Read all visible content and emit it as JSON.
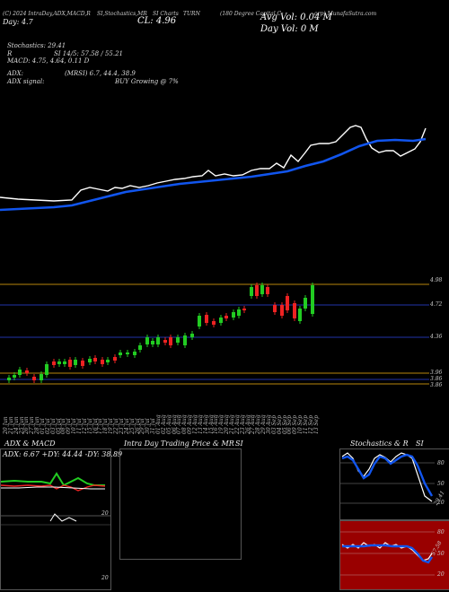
{
  "header": {
    "left_line1": "(C) 2024 IntraDay,ADX,MACD,R",
    "left_line2": "SI,Stochastics,MR",
    "left_line3": "SI Charts",
    "cl_label": "CL: 4.96",
    "ticker": "TURN",
    "title": "(180 Degree Capital C",
    "source": "orp) MunafaSutra.com",
    "day_label": "Day: 4.7",
    "avg_vol": "Avg Vol: 0.04  M",
    "day_vol": "Day Vol: 0  M"
  },
  "indicators": {
    "stochastics": "Stochastics: 29.41",
    "rsi": "SI 14/5: 57.58 / 55.21",
    "rsi_prefix": "R",
    "macd": "MACD: 4.75, 4.64, 0.11 D",
    "adx": "ADX:",
    "mrsi": "(MRSI) 6.7, 44.4, 38.9",
    "adx_signal": "ADX  signal:",
    "signal": "BUY Growing @ 7%"
  },
  "price_levels": [
    "4.98",
    "4.72",
    "4.36",
    "3.96",
    "3.86",
    "3.86"
  ],
  "dates": [
    "20 Jun",
    "21 Jun",
    "24 Jun",
    "25 Jun",
    "26 Jun",
    "27 Jun",
    "28 Jun",
    "01 Jul",
    "02 Jul",
    "03 Jul",
    "05 Jul",
    "08 Jul",
    "09 Jul",
    "10 Jul",
    "11 Jul",
    "12 Jul",
    "15 Jul",
    "16 Jul",
    "17 Jul",
    "18 Jul",
    "19 Jul",
    "22 Jul",
    "23 Jul",
    "24 Jul",
    "25 Jul",
    "26 Jul",
    "29 Jul",
    "30 Jul",
    "31 Jul",
    "01 Aug",
    "02 Aug",
    "05 Aug",
    "06 Aug",
    "07 Aug",
    "08 Aug",
    "09 Aug",
    "12 Aug",
    "13 Aug",
    "14 Aug",
    "15 Aug",
    "16 Aug",
    "19 Aug",
    "20 Aug",
    "21 Aug",
    "22 Aug",
    "23 Aug",
    "26 Aug",
    "27 Aug",
    "28 Aug",
    "29 Aug",
    "30 Aug",
    "03 Sep",
    "04 Sep",
    "05 Sep",
    "06 Sep",
    "09 Sep",
    "10 Sep",
    "11 Sep",
    "12 Sep",
    "13 Sep"
  ],
  "adx_panel": {
    "title": "ADX  & MACD",
    "readout": "ADX: 6.67  +DY: 44.44  -DY: 38.89",
    "scale": [
      "20",
      "20"
    ]
  },
  "intraday_panel": {
    "title": "Intra Day Trading Price  & MR",
    "title_right": "SI"
  },
  "stoch_panel": {
    "title": "Stochastics & R",
    "title_right": "SI",
    "scale_top": [
      "80",
      "50",
      "20"
    ],
    "value_label": "29.41",
    "scale_bottom": [
      "80",
      "50",
      "20"
    ],
    "rsi_label": "57.58"
  },
  "colors": {
    "up": "#22cc22",
    "down": "#ee2222",
    "ema": "#1155ee",
    "price": "#ffffff",
    "gold": "#b8860b",
    "rsi_bg": "#990000"
  }
}
